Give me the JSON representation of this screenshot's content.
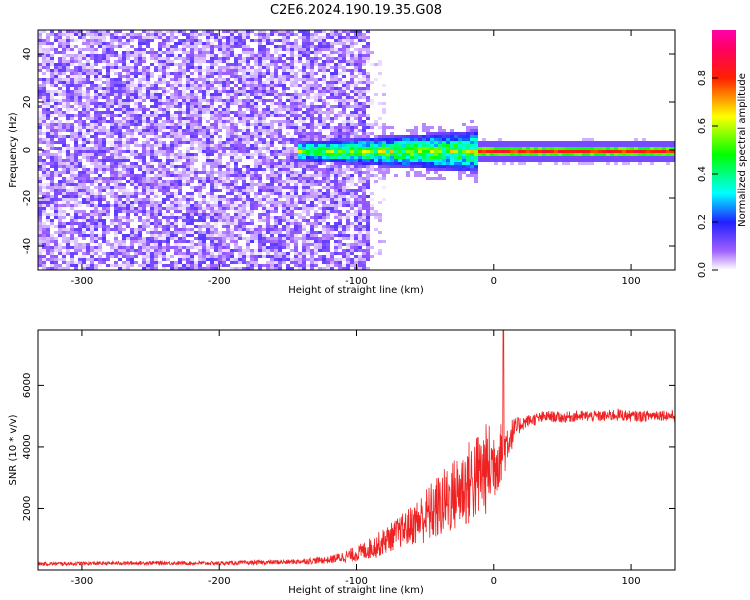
{
  "figure_title": "C2E6.2024.190.19.35.G08",
  "chart_data": [
    {
      "type": "heatmap",
      "title": "C2E6.2024.190.19.35.G08",
      "xlabel": "Height of straight line (km)",
      "ylabel": "Frequency (Hz)",
      "xlim": [
        -332,
        132
      ],
      "ylim": [
        -50,
        50
      ],
      "xticks": [
        -300,
        -200,
        -100,
        0,
        100
      ],
      "yticks": [
        -40,
        -20,
        0,
        20,
        40
      ],
      "colorbar": {
        "label": "Normalized spectral amplitude",
        "range": [
          0.0,
          1.0
        ],
        "ticks": [
          0.0,
          0.2,
          0.4,
          0.6,
          0.8
        ],
        "colors": [
          "#ffffff",
          "#6a00ff",
          "#0000ff",
          "#00ffff",
          "#00ff00",
          "#ffff00",
          "#ff0000",
          "#ff00ff"
        ]
      },
      "regions": [
        {
          "x_range": [
            -332,
            -90
          ],
          "description_values": {
            "freq_spread": [
              -50,
              50
            ],
            "amplitude": [
              0.05,
              0.15
            ]
          }
        },
        {
          "x_range": [
            -90,
            -80
          ],
          "description_values": {
            "freq_spread": [
              -40,
              45
            ],
            "amplitude": [
              0.01,
              0.05
            ]
          }
        },
        {
          "x_range": [
            -145,
            -12
          ],
          "description_values": {
            "freq_spread": [
              -8,
              8
            ],
            "amplitude": [
              0.15,
              0.6
            ]
          }
        },
        {
          "x_range": [
            -12,
            132
          ],
          "description_values": {
            "freq_spread": [
              -3,
              3
            ],
            "amplitude": [
              0.6,
              0.95
            ]
          }
        }
      ]
    },
    {
      "type": "line",
      "xlabel": "Height of straight line (km)",
      "ylabel": "SNR (10 * v/v)",
      "xlim": [
        -332,
        132
      ],
      "ylim": [
        0,
        7800
      ],
      "xticks": [
        -300,
        -200,
        -100,
        0,
        100
      ],
      "yticks": [
        2000,
        4000,
        6000
      ],
      "series_color": "#ee2222",
      "x": [
        -332,
        -300,
        -250,
        -200,
        -150,
        -120,
        -100,
        -85,
        -70,
        -60,
        -50,
        -40,
        -30,
        -20,
        -10,
        -5,
        0,
        5,
        8,
        10,
        15,
        20,
        25,
        30,
        40,
        50,
        60,
        70,
        80,
        90,
        100,
        110,
        120,
        132
      ],
      "y": [
        200,
        210,
        230,
        220,
        260,
        330,
        520,
        800,
        1200,
        1450,
        1750,
        2050,
        2400,
        2750,
        3100,
        3300,
        3500,
        3800,
        4000,
        4200,
        4550,
        4750,
        4850,
        4900,
        5000,
        4950,
        5000,
        5000,
        5000,
        5050,
        5000,
        5000,
        5050,
        5000
      ],
      "noise": [
        60,
        60,
        60,
        60,
        80,
        120,
        250,
        400,
        500,
        650,
        900,
        1100,
        1200,
        1400,
        1500,
        1500,
        1300,
        1000,
        900,
        700,
        400,
        250,
        200,
        200,
        180,
        180,
        180,
        180,
        180,
        200,
        180,
        180,
        180,
        180
      ],
      "spike": {
        "x": 7,
        "y": 7800
      }
    }
  ]
}
